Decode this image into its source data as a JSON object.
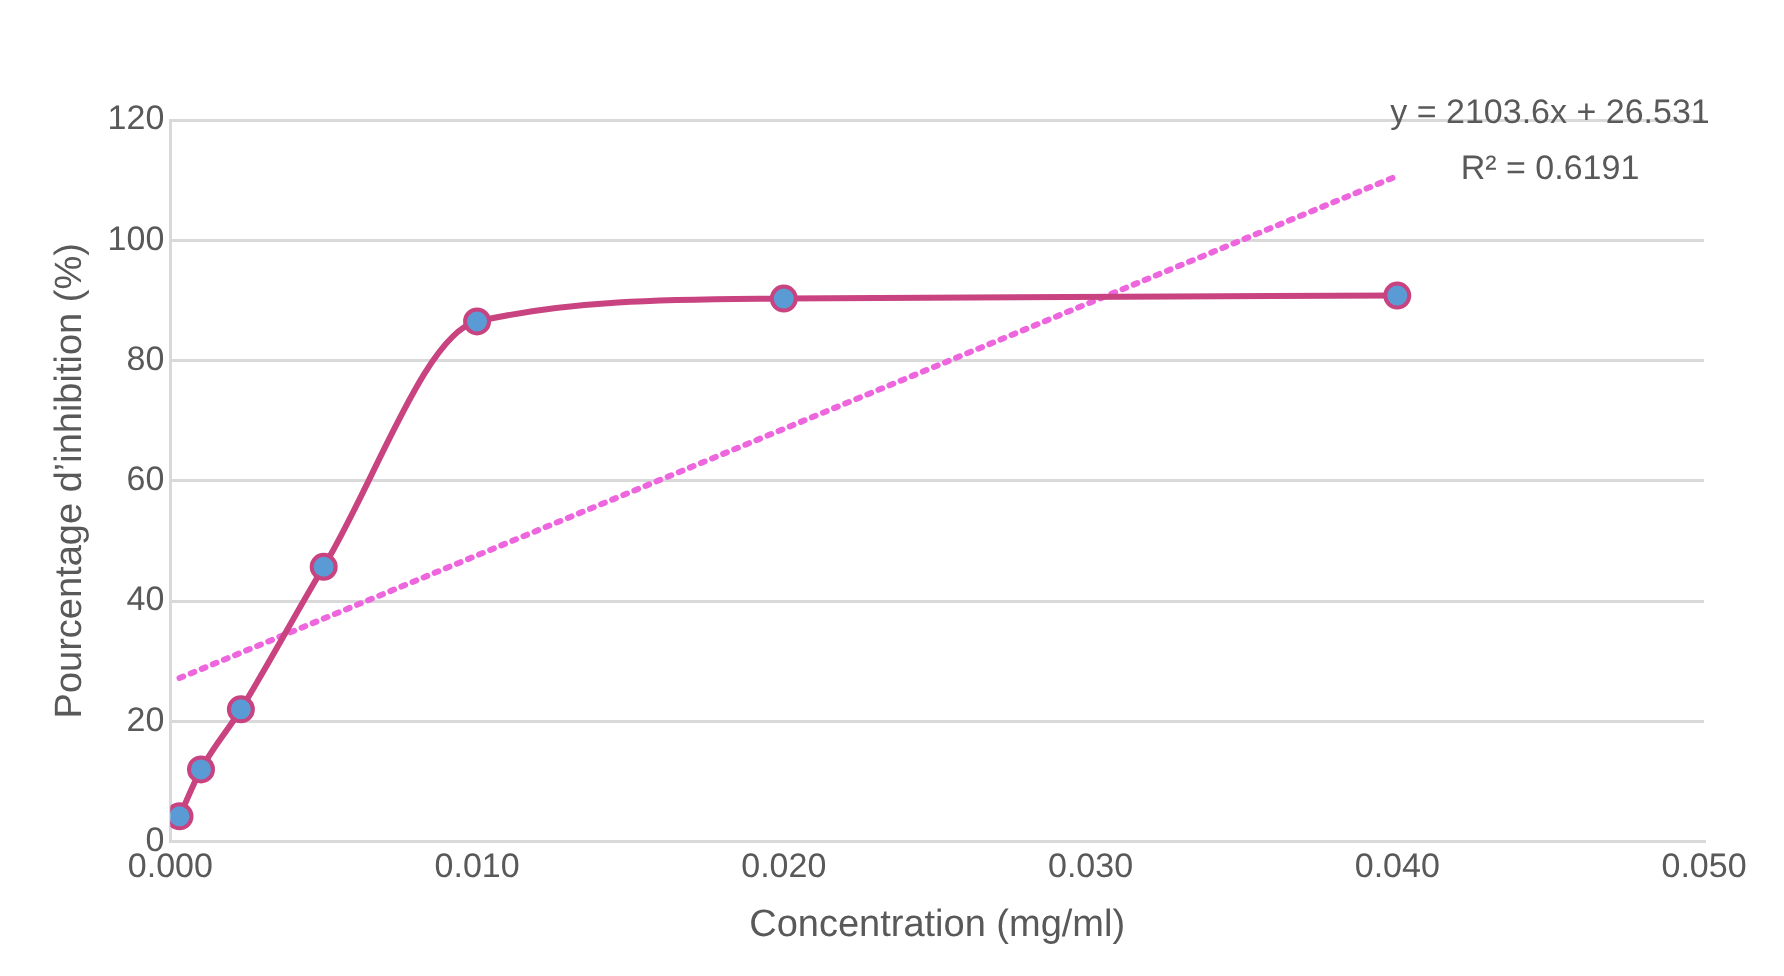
{
  "chart_data": {
    "type": "line",
    "xlabel": "Concentration (mg/ml)",
    "ylabel": "Pourcentage d’inhibition (%)",
    "xlim": [
      0,
      0.05
    ],
    "xticks": [
      {
        "value": 0,
        "label": "0.000"
      },
      {
        "value": 0.01,
        "label": "0.010"
      },
      {
        "value": 0.02,
        "label": "0.020"
      },
      {
        "value": 0.03,
        "label": "0.030"
      },
      {
        "value": 0.04,
        "label": "0.040"
      },
      {
        "value": 0.05,
        "label": "0.050"
      }
    ],
    "ylim": [
      0,
      120
    ],
    "yticks": [
      0,
      20,
      40,
      60,
      80,
      100,
      120
    ],
    "grid": "y",
    "legend": false,
    "series": [
      {
        "type": "line",
        "color": "#c8437f",
        "colors": [
          "#5b9bd5",
          "#5b9bd5",
          "#5b9bd5",
          "#5b9bd5",
          "#5b9bd5",
          "#5b9bd5",
          "#5b9bd5"
        ],
        "marker": "circle",
        "line_style": "solid",
        "x": [
          0.0003,
          0.001,
          0.0023,
          0.005,
          0.01,
          0.02,
          0.04
        ],
        "values": [
          4.2,
          12,
          22,
          45.7,
          86.5,
          90.3,
          90.8
        ]
      },
      {
        "type": "line",
        "color": "#ee66dd",
        "marker": "none",
        "line_style": "dotted",
        "x": [
          0.0003,
          0.04
        ],
        "values": [
          27.2,
          110.7
        ]
      }
    ],
    "annotations": [
      "y = 2103.6x + 26.531",
      "R² = 0.6191"
    ]
  }
}
